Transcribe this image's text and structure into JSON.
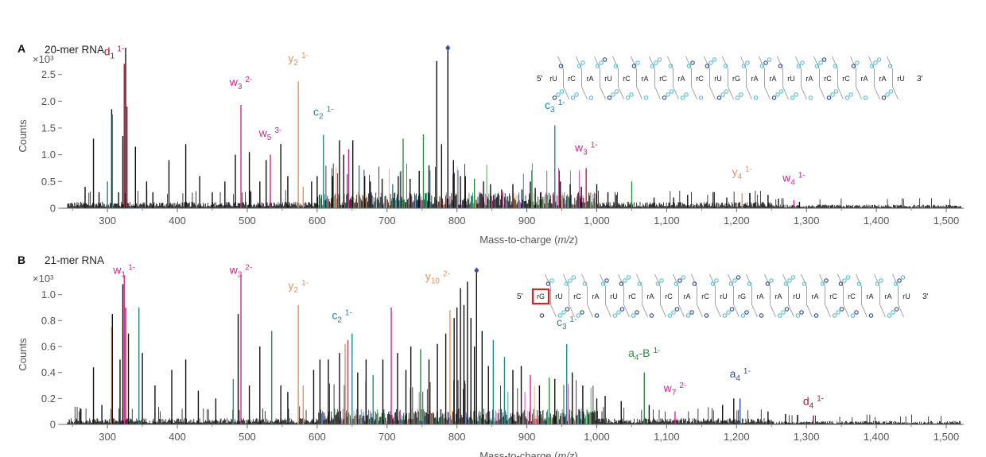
{
  "colors": {
    "d": "#a31f34",
    "w": "#d6258c",
    "y": "#e8925a",
    "c": "#1d8a8a",
    "a": "#2f4f9b",
    "aB": "#2e8b3f",
    "black": "#111111",
    "highlight": "#d32424",
    "seq_light": "#5ec3d2",
    "seq_dark": "#3b4f9f"
  },
  "chart_data": [
    {
      "panel": "A",
      "title": "20-mer RNA",
      "type": "bar",
      "xlabel": "Mass-to-charge (m/z)",
      "ylabel": "Counts",
      "y_multiplier": "×10³",
      "xlim": [
        235,
        1525
      ],
      "ylim": [
        0,
        3.0
      ],
      "xticks": [
        300,
        400,
        500,
        600,
        700,
        800,
        900,
        1000,
        1100,
        1200,
        1300,
        1400,
        1500
      ],
      "xtick_labels": [
        "300",
        "400",
        "500",
        "600",
        "700",
        "800",
        "900",
        "1,000",
        "1,100",
        "1,200",
        "1,300",
        "1,400",
        "1,500"
      ],
      "yticks": [
        0,
        0.5,
        1.0,
        1.5,
        2.0,
        2.5
      ],
      "ytick_labels": [
        "0",
        "0.5",
        "1.0",
        "1.5",
        "2.0",
        "2.5"
      ],
      "sequence": [
        "rU",
        "rC",
        "rA",
        "rU",
        "rC",
        "rA",
        "rC",
        "rA",
        "rC",
        "rU",
        "rG",
        "rA",
        "rA",
        "rU",
        "rA",
        "rC",
        "rC",
        "rA",
        "rA",
        "rU"
      ],
      "highlight_index": -1,
      "peaks": [
        {
          "x": 268,
          "y": 0.4,
          "c": "black"
        },
        {
          "x": 280,
          "y": 1.3,
          "c": "black"
        },
        {
          "x": 288,
          "y": 0.3,
          "c": "black"
        },
        {
          "x": 300,
          "y": 0.5,
          "c": "c"
        },
        {
          "x": 306,
          "y": 1.85,
          "c": "black"
        },
        {
          "x": 307,
          "y": 1.75,
          "c": "c"
        },
        {
          "x": 316,
          "y": 0.3,
          "c": "black"
        },
        {
          "x": 322,
          "y": 1.35,
          "c": "black"
        },
        {
          "x": 324,
          "y": 2.7,
          "c": "d"
        },
        {
          "x": 326,
          "y": 3.0,
          "c": "black"
        },
        {
          "x": 328,
          "y": 1.9,
          "c": "d"
        },
        {
          "x": 340,
          "y": 1.15,
          "c": "black"
        },
        {
          "x": 356,
          "y": 0.5,
          "c": "black"
        },
        {
          "x": 365,
          "y": 0.3,
          "c": "black"
        },
        {
          "x": 388,
          "y": 0.9,
          "c": "black"
        },
        {
          "x": 412,
          "y": 1.2,
          "c": "black"
        },
        {
          "x": 432,
          "y": 0.6,
          "c": "black"
        },
        {
          "x": 450,
          "y": 0.3,
          "c": "black"
        },
        {
          "x": 468,
          "y": 0.5,
          "c": "black"
        },
        {
          "x": 483,
          "y": 1.0,
          "c": "black"
        },
        {
          "x": 491,
          "y": 1.93,
          "c": "w"
        },
        {
          "x": 503,
          "y": 1.05,
          "c": "black"
        },
        {
          "x": 518,
          "y": 0.5,
          "c": "black"
        },
        {
          "x": 527,
          "y": 0.9,
          "c": "black"
        },
        {
          "x": 533,
          "y": 1.0,
          "c": "w"
        },
        {
          "x": 548,
          "y": 1.2,
          "c": "black"
        },
        {
          "x": 558,
          "y": 0.6,
          "c": "black"
        },
        {
          "x": 573,
          "y": 2.37,
          "c": "y"
        },
        {
          "x": 580,
          "y": 0.4,
          "c": "y"
        },
        {
          "x": 592,
          "y": 0.5,
          "c": "black"
        },
        {
          "x": 600,
          "y": 0.6,
          "c": "black"
        },
        {
          "x": 609,
          "y": 1.37,
          "c": "c"
        },
        {
          "x": 622,
          "y": 0.6,
          "c": "black"
        },
        {
          "x": 632,
          "y": 1.27,
          "c": "black"
        },
        {
          "x": 638,
          "y": 1.0,
          "c": "black"
        },
        {
          "x": 645,
          "y": 1.1,
          "c": "w"
        },
        {
          "x": 651,
          "y": 1.27,
          "c": "black"
        },
        {
          "x": 660,
          "y": 0.8,
          "c": "c"
        },
        {
          "x": 668,
          "y": 0.6,
          "c": "black"
        },
        {
          "x": 676,
          "y": 0.5,
          "c": "black"
        },
        {
          "x": 693,
          "y": 0.55,
          "c": "black"
        },
        {
          "x": 708,
          "y": 0.45,
          "c": "c"
        },
        {
          "x": 716,
          "y": 0.6,
          "c": "black"
        },
        {
          "x": 723,
          "y": 1.3,
          "c": "aB"
        },
        {
          "x": 733,
          "y": 0.55,
          "c": "black"
        },
        {
          "x": 746,
          "y": 0.7,
          "c": "black"
        },
        {
          "x": 752,
          "y": 1.38,
          "c": "aB"
        },
        {
          "x": 760,
          "y": 0.8,
          "c": "black"
        },
        {
          "x": 771,
          "y": 2.75,
          "c": "black"
        },
        {
          "x": 778,
          "y": 1.2,
          "c": "black"
        },
        {
          "x": 787,
          "y": 2.98,
          "c": "black"
        },
        {
          "x": 795,
          "y": 0.9,
          "c": "black"
        },
        {
          "x": 805,
          "y": 0.6,
          "c": "black"
        },
        {
          "x": 812,
          "y": 0.6,
          "c": "black"
        },
        {
          "x": 825,
          "y": 0.55,
          "c": "aB"
        },
        {
          "x": 838,
          "y": 0.5,
          "c": "black"
        },
        {
          "x": 848,
          "y": 0.45,
          "c": "black"
        },
        {
          "x": 864,
          "y": 0.35,
          "c": "black"
        },
        {
          "x": 880,
          "y": 0.45,
          "c": "black"
        },
        {
          "x": 893,
          "y": 0.35,
          "c": "black"
        },
        {
          "x": 905,
          "y": 0.5,
          "c": "black"
        },
        {
          "x": 912,
          "y": 0.38,
          "c": "black"
        },
        {
          "x": 920,
          "y": 0.3,
          "c": "black"
        },
        {
          "x": 940,
          "y": 1.55,
          "c": "c"
        },
        {
          "x": 948,
          "y": 0.5,
          "c": "black"
        },
        {
          "x": 962,
          "y": 0.45,
          "c": "black"
        },
        {
          "x": 978,
          "y": 0.4,
          "c": "black"
        },
        {
          "x": 985,
          "y": 0.75,
          "c": "w"
        },
        {
          "x": 1000,
          "y": 0.45,
          "c": "black"
        },
        {
          "x": 1016,
          "y": 0.3,
          "c": "black"
        },
        {
          "x": 1028,
          "y": 0.25,
          "c": "black"
        },
        {
          "x": 1050,
          "y": 0.5,
          "c": "aB"
        },
        {
          "x": 1082,
          "y": 0.2,
          "c": "black"
        },
        {
          "x": 1110,
          "y": 0.2,
          "c": "black"
        },
        {
          "x": 1130,
          "y": 0.25,
          "c": "black"
        },
        {
          "x": 1168,
          "y": 0.3,
          "c": "black"
        },
        {
          "x": 1186,
          "y": 0.2,
          "c": "black"
        },
        {
          "x": 1208,
          "y": 0.28,
          "c": "y"
        },
        {
          "x": 1245,
          "y": 0.25,
          "c": "black"
        },
        {
          "x": 1260,
          "y": 0.18,
          "c": "black"
        },
        {
          "x": 1282,
          "y": 0.15,
          "c": "w"
        },
        {
          "x": 1290,
          "y": 0.12,
          "c": "black"
        }
      ],
      "annotations": [
        {
          "ion": "d",
          "sub": "1",
          "charge": "1-",
          "mz": 324,
          "y": 2.86,
          "c": "d",
          "anchor": "end"
        },
        {
          "ion": "w",
          "sub": "3",
          "charge": "2-",
          "mz": 491,
          "y": 2.29,
          "c": "w",
          "anchor": "middle"
        },
        {
          "ion": "y",
          "sub": "2",
          "charge": "1-",
          "mz": 573,
          "y": 2.73,
          "c": "y",
          "anchor": "middle"
        },
        {
          "ion": "w",
          "sub": "5",
          "charge": "3-",
          "mz": 533,
          "y": 1.34,
          "c": "w",
          "anchor": "middle"
        },
        {
          "ion": "c",
          "sub": "2",
          "charge": "1-",
          "mz": 609,
          "y": 1.73,
          "c": "c",
          "anchor": "middle"
        },
        {
          "ion": "c",
          "sub": "3",
          "charge": "1-",
          "mz": 940,
          "y": 1.86,
          "c": "c",
          "anchor": "middle"
        },
        {
          "ion": "w",
          "sub": "3",
          "charge": "1-",
          "mz": 985,
          "y": 1.06,
          "c": "w",
          "anchor": "middle"
        },
        {
          "ion": "y",
          "sub": "4",
          "charge": "1-",
          "mz": 1208,
          "y": 0.61,
          "c": "y",
          "anchor": "middle"
        },
        {
          "ion": "w",
          "sub": "4",
          "charge": "1-",
          "mz": 1282,
          "y": 0.5,
          "c": "w",
          "anchor": "middle"
        }
      ]
    },
    {
      "panel": "B",
      "title": "21-mer RNA",
      "type": "bar",
      "xlabel": "Mass-to-charge (m/z)",
      "ylabel": "Counts",
      "y_multiplier": "×10³",
      "xlim": [
        235,
        1525
      ],
      "ylim": [
        0,
        1.2
      ],
      "xticks": [
        300,
        400,
        500,
        600,
        700,
        800,
        900,
        1000,
        1100,
        1200,
        1300,
        1400,
        1500
      ],
      "xtick_labels": [
        "300",
        "400",
        "500",
        "600",
        "700",
        "800",
        "900",
        "1,000",
        "1,100",
        "1,200",
        "1,300",
        "1,400",
        "1,500"
      ],
      "yticks": [
        0,
        0.2,
        0.4,
        0.6,
        0.8,
        1.0
      ],
      "ytick_labels": [
        "0",
        "0.2",
        "0.4",
        "0.6",
        "0.8",
        "1.0"
      ],
      "sequence": [
        "rG",
        "rU",
        "rC",
        "rA",
        "rU",
        "rC",
        "rA",
        "rC",
        "rA",
        "rC",
        "rU",
        "rG",
        "rA",
        "rA",
        "rU",
        "rA",
        "rC",
        "rC",
        "rA",
        "rA",
        "rU"
      ],
      "highlight_index": 0,
      "peaks": [
        {
          "x": 262,
          "y": 0.12,
          "c": "black"
        },
        {
          "x": 280,
          "y": 0.44,
          "c": "black"
        },
        {
          "x": 292,
          "y": 0.15,
          "c": "black"
        },
        {
          "x": 306,
          "y": 0.75,
          "c": "y"
        },
        {
          "x": 307,
          "y": 0.85,
          "c": "black"
        },
        {
          "x": 318,
          "y": 0.5,
          "c": "black"
        },
        {
          "x": 322,
          "y": 1.08,
          "c": "black"
        },
        {
          "x": 324,
          "y": 1.15,
          "c": "w"
        },
        {
          "x": 326,
          "y": 0.9,
          "c": "d"
        },
        {
          "x": 330,
          "y": 0.7,
          "c": "black"
        },
        {
          "x": 345,
          "y": 0.9,
          "c": "c"
        },
        {
          "x": 350,
          "y": 0.55,
          "c": "black"
        },
        {
          "x": 368,
          "y": 0.3,
          "c": "black"
        },
        {
          "x": 392,
          "y": 0.42,
          "c": "black"
        },
        {
          "x": 412,
          "y": 0.5,
          "c": "black"
        },
        {
          "x": 430,
          "y": 0.26,
          "c": "black"
        },
        {
          "x": 455,
          "y": 0.2,
          "c": "black"
        },
        {
          "x": 480,
          "y": 0.35,
          "c": "c"
        },
        {
          "x": 487,
          "y": 0.85,
          "c": "black"
        },
        {
          "x": 491,
          "y": 1.15,
          "c": "w"
        },
        {
          "x": 503,
          "y": 0.3,
          "c": "black"
        },
        {
          "x": 518,
          "y": 0.6,
          "c": "black"
        },
        {
          "x": 535,
          "y": 0.72,
          "c": "aB"
        },
        {
          "x": 548,
          "y": 0.3,
          "c": "black"
        },
        {
          "x": 558,
          "y": 0.25,
          "c": "black"
        },
        {
          "x": 573,
          "y": 0.92,
          "c": "y"
        },
        {
          "x": 580,
          "y": 0.3,
          "c": "y"
        },
        {
          "x": 595,
          "y": 0.42,
          "c": "black"
        },
        {
          "x": 604,
          "y": 0.5,
          "c": "black"
        },
        {
          "x": 616,
          "y": 0.5,
          "c": "black"
        },
        {
          "x": 632,
          "y": 0.55,
          "c": "black"
        },
        {
          "x": 640,
          "y": 0.62,
          "c": "y"
        },
        {
          "x": 644,
          "y": 0.65,
          "c": "w"
        },
        {
          "x": 650,
          "y": 0.7,
          "c": "c"
        },
        {
          "x": 658,
          "y": 0.4,
          "c": "black"
        },
        {
          "x": 670,
          "y": 0.5,
          "c": "black"
        },
        {
          "x": 680,
          "y": 0.38,
          "c": "c"
        },
        {
          "x": 694,
          "y": 0.5,
          "c": "black"
        },
        {
          "x": 706,
          "y": 0.9,
          "c": "w"
        },
        {
          "x": 715,
          "y": 0.55,
          "c": "black"
        },
        {
          "x": 727,
          "y": 0.42,
          "c": "black"
        },
        {
          "x": 734,
          "y": 0.6,
          "c": "black"
        },
        {
          "x": 748,
          "y": 0.58,
          "c": "aB"
        },
        {
          "x": 760,
          "y": 0.5,
          "c": "black"
        },
        {
          "x": 772,
          "y": 0.62,
          "c": "black"
        },
        {
          "x": 784,
          "y": 0.7,
          "c": "black"
        },
        {
          "x": 790,
          "y": 0.88,
          "c": "y"
        },
        {
          "x": 796,
          "y": 0.82,
          "c": "black"
        },
        {
          "x": 800,
          "y": 0.9,
          "c": "black"
        },
        {
          "x": 805,
          "y": 1.05,
          "c": "black"
        },
        {
          "x": 810,
          "y": 0.92,
          "c": "black"
        },
        {
          "x": 815,
          "y": 1.1,
          "c": "black"
        },
        {
          "x": 820,
          "y": 0.82,
          "c": "black"
        },
        {
          "x": 825,
          "y": 0.6,
          "c": "black"
        },
        {
          "x": 828,
          "y": 1.18,
          "c": "black"
        },
        {
          "x": 836,
          "y": 0.72,
          "c": "black"
        },
        {
          "x": 845,
          "y": 0.45,
          "c": "black"
        },
        {
          "x": 852,
          "y": 0.65,
          "c": "c"
        },
        {
          "x": 868,
          "y": 0.52,
          "c": "c"
        },
        {
          "x": 880,
          "y": 0.42,
          "c": "black"
        },
        {
          "x": 892,
          "y": 0.45,
          "c": "black"
        },
        {
          "x": 905,
          "y": 0.38,
          "c": "w"
        },
        {
          "x": 918,
          "y": 0.3,
          "c": "black"
        },
        {
          "x": 932,
          "y": 0.36,
          "c": "aB"
        },
        {
          "x": 940,
          "y": 0.35,
          "c": "black"
        },
        {
          "x": 957,
          "y": 0.62,
          "c": "c"
        },
        {
          "x": 965,
          "y": 0.4,
          "c": "black"
        },
        {
          "x": 980,
          "y": 0.3,
          "c": "black"
        },
        {
          "x": 1000,
          "y": 0.2,
          "c": "black"
        },
        {
          "x": 1012,
          "y": 0.22,
          "c": "black"
        },
        {
          "x": 1035,
          "y": 0.18,
          "c": "black"
        },
        {
          "x": 1068,
          "y": 0.4,
          "c": "aB"
        },
        {
          "x": 1075,
          "y": 0.15,
          "c": "black"
        },
        {
          "x": 1112,
          "y": 0.1,
          "c": "w"
        },
        {
          "x": 1180,
          "y": 0.15,
          "c": "black"
        },
        {
          "x": 1196,
          "y": 0.2,
          "c": "black"
        },
        {
          "x": 1205,
          "y": 0.2,
          "c": "a"
        },
        {
          "x": 1245,
          "y": 0.1,
          "c": "black"
        },
        {
          "x": 1270,
          "y": 0.08,
          "c": "black"
        },
        {
          "x": 1310,
          "y": 0.07,
          "c": "d"
        }
      ],
      "annotations": [
        {
          "ion": "w",
          "sub": "1",
          "charge": "1-",
          "mz": 324,
          "y": 1.16,
          "c": "w",
          "anchor": "middle"
        },
        {
          "ion": "w",
          "sub": "3",
          "charge": "2-",
          "mz": 491,
          "y": 1.16,
          "c": "w",
          "anchor": "middle"
        },
        {
          "ion": "y",
          "sub": "2",
          "charge": "1-",
          "mz": 573,
          "y": 1.04,
          "c": "y",
          "anchor": "middle"
        },
        {
          "ion": "y",
          "sub": "10",
          "charge": "2-",
          "mz": 790,
          "y": 1.11,
          "c": "y",
          "anchor": "end"
        },
        {
          "ion": "c",
          "sub": "2",
          "charge": "1-",
          "mz": 650,
          "y": 0.81,
          "c": "c",
          "anchor": "end"
        },
        {
          "ion": "c",
          "sub": "3",
          "charge": "1-",
          "mz": 957,
          "y": 0.76,
          "c": "c",
          "anchor": "middle"
        },
        {
          "ion": "a",
          "sub": "4",
          "charge": "1-",
          "mz": 1068,
          "y": 0.52,
          "c": "aB",
          "anchor": "middle",
          "suffix": "-B"
        },
        {
          "ion": "w",
          "sub": "7",
          "charge": "2-",
          "mz": 1112,
          "y": 0.25,
          "c": "w",
          "anchor": "middle"
        },
        {
          "ion": "a",
          "sub": "4",
          "charge": "1-",
          "mz": 1205,
          "y": 0.36,
          "c": "a",
          "anchor": "middle"
        },
        {
          "ion": "d",
          "sub": "4",
          "charge": "1-",
          "mz": 1310,
          "y": 0.15,
          "c": "d",
          "anchor": "middle"
        }
      ]
    }
  ]
}
